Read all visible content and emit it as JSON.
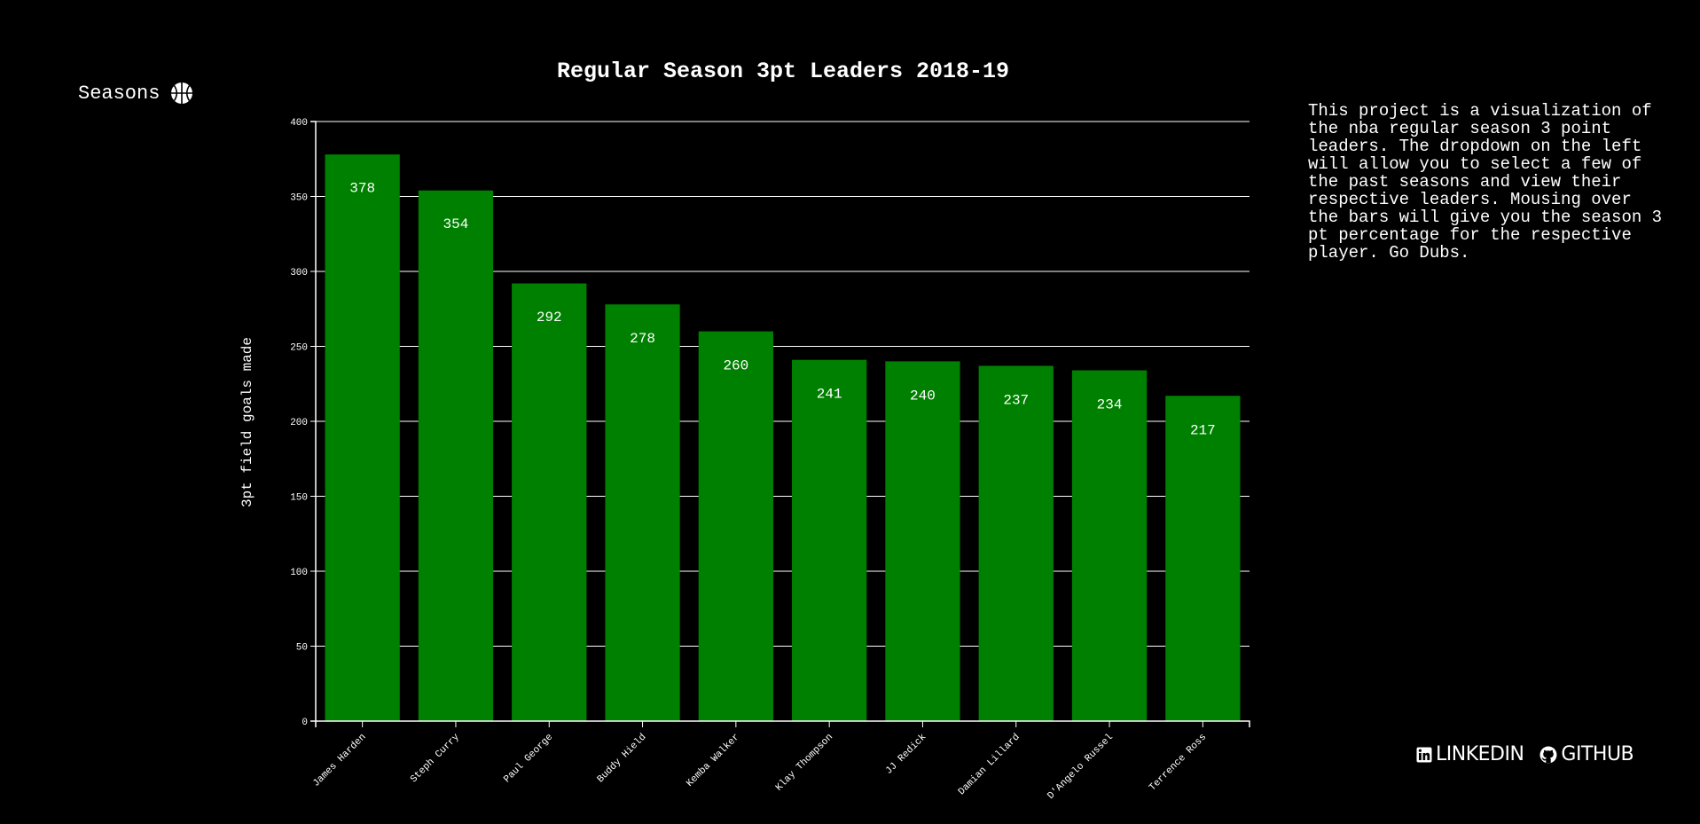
{
  "dropdown": {
    "label": "Seasons",
    "icon": "basketball-icon"
  },
  "description": "This project is a visualization of the nba regular season 3 point leaders. The dropdown on the left will allow you to select a few of the past seasons and view their respective leaders. Mousing over the bars will give you the season 3 pt percentage for the respective player. Go Dubs.",
  "links": {
    "linkedin": "LINKEDIN",
    "github": "GITHUB",
    "linkedin_icon": "linkedin-icon",
    "github_icon": "github-icon"
  },
  "colors": {
    "background": "#000000",
    "bar": "#008000",
    "text": "#ffffff",
    "grid": "#ffffff"
  },
  "chart_data": {
    "type": "bar",
    "title": "Regular Season 3pt Leaders 2018-19",
    "ylabel": "3pt field goals made",
    "xlabel": "",
    "ylim": [
      0,
      400
    ],
    "yticks": [
      0,
      50,
      100,
      150,
      200,
      250,
      300,
      350,
      400
    ],
    "grid": true,
    "categories": [
      "James Harden",
      "Steph Curry",
      "Paul George",
      "Buddy Hield",
      "Kemba Walker",
      "Klay Thompson",
      "JJ Redick",
      "Damian Lillard",
      "D'Angelo Russel",
      "Terrence Ross"
    ],
    "values": [
      378,
      354,
      292,
      278,
      260,
      241,
      240,
      237,
      234,
      217
    ]
  }
}
